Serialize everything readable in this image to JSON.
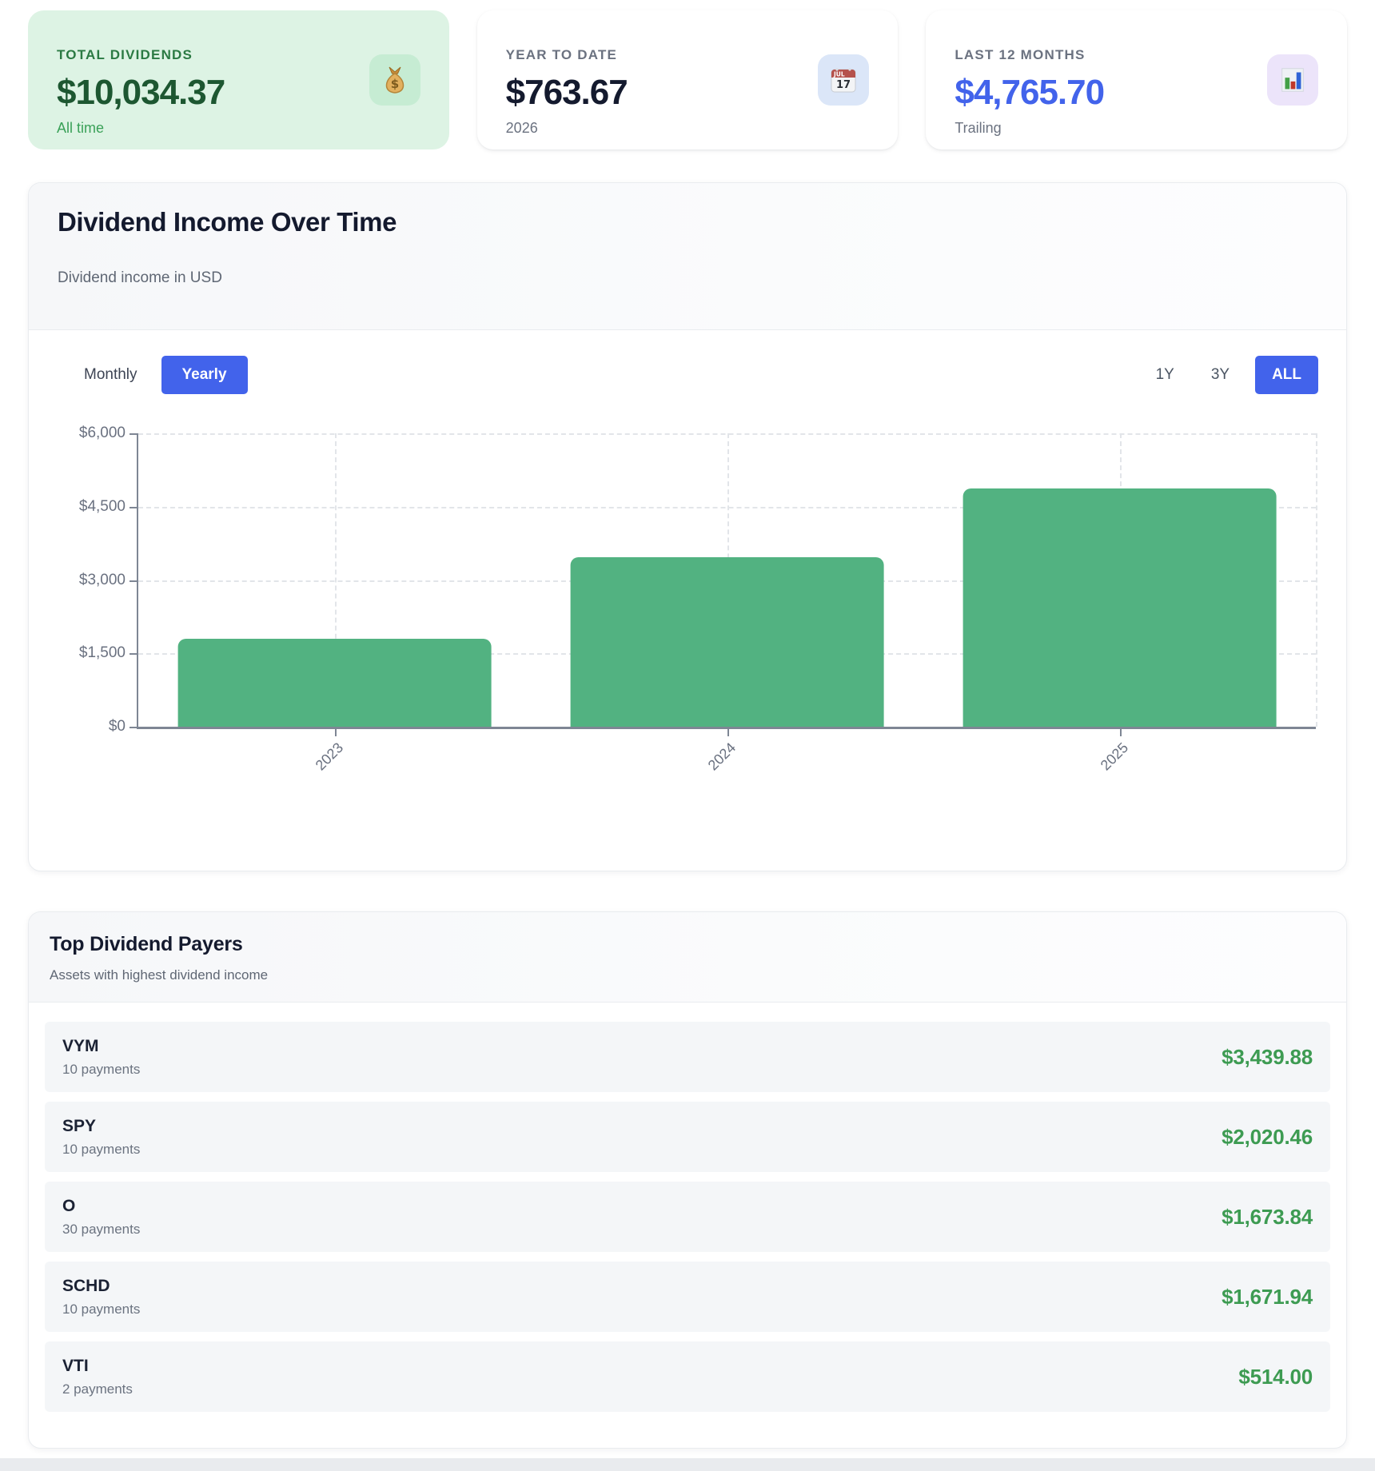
{
  "stats": [
    {
      "label": "TOTAL DIVIDENDS",
      "value": "$10,034.37",
      "sub": "All time",
      "icon": "money-bag-icon"
    },
    {
      "label": "YEAR TO DATE",
      "value": "$763.67",
      "sub": "2026",
      "icon": "calendar-icon",
      "calendar_month": "JUL",
      "calendar_day": "17"
    },
    {
      "label": "LAST 12 MONTHS",
      "value": "$4,765.70",
      "sub": "Trailing",
      "icon": "bar-chart-icon"
    }
  ],
  "chart_card": {
    "title": "Dividend Income Over Time",
    "subtitle": "Dividend income in USD",
    "controls": {
      "monthly_label": "Monthly",
      "yearly_label": "Yearly",
      "active_view": "Yearly",
      "range_1y": "1Y",
      "range_3y": "3Y",
      "range_all": "ALL",
      "active_range": "ALL"
    }
  },
  "chart_data": {
    "type": "bar",
    "title": "Dividend Income Over Time",
    "subtitle": "Dividend income in USD",
    "categories": [
      "2023",
      "2024",
      "2025"
    ],
    "values": [
      1800,
      3460,
      4875
    ],
    "xlabel": "",
    "ylabel": "",
    "ylim": [
      0,
      6000
    ],
    "yticks": [
      "$6,000",
      "$4,500",
      "$3,000",
      "$1,500",
      "$0"
    ],
    "ytick_values": [
      6000,
      4500,
      3000,
      1500,
      0
    ],
    "grid": true,
    "legend": false,
    "bar_color": "#52b281"
  },
  "payers_card": {
    "title": "Top Dividend Payers",
    "subtitle": "Assets with highest dividend income",
    "rows": [
      {
        "ticker": "VYM",
        "payments": "10 payments",
        "amount": "$3,439.88"
      },
      {
        "ticker": "SPY",
        "payments": "10 payments",
        "amount": "$2,020.46"
      },
      {
        "ticker": "O",
        "payments": "30 payments",
        "amount": "$1,673.84"
      },
      {
        "ticker": "SCHD",
        "payments": "10 payments",
        "amount": "$1,671.94"
      },
      {
        "ticker": "VTI",
        "payments": "2 payments",
        "amount": "$514.00"
      }
    ]
  },
  "colors": {
    "accent_blue": "#4263eb",
    "bar_green": "#52b281",
    "amount_green": "#3d9b52",
    "total_card_bg": "#ddf3e4",
    "total_card_text": "#1d5731",
    "page_bottom_edge": "#e9ebee"
  }
}
